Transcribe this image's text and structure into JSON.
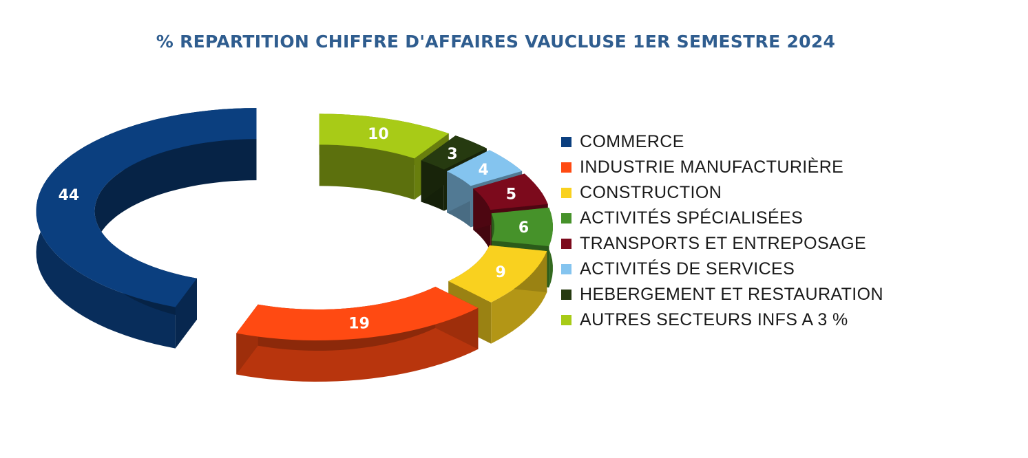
{
  "chart_data": {
    "type": "pie",
    "variant": "3d-exploded-donut",
    "title": "% REPARTITION CHIFFRE D'AFFAIRES VAUCLUSE 1ER SEMESTRE 2024",
    "categories": [
      "COMMERCE",
      "INDUSTRIE MANUFACTURIÈRE",
      "CONSTRUCTION",
      "ACTIVITÉS SPÉCIALISÉES",
      "TRANSPORTS ET ENTREPOSAGE",
      "ACTIVITÉS DE SERVICES",
      "HEBERGEMENT ET RESTAURATION",
      "AUTRES SECTEURS INFS A 3 %"
    ],
    "values": [
      44,
      19,
      9,
      6,
      5,
      4,
      3,
      10
    ],
    "data_labels": [
      "44",
      "19",
      "9",
      "6",
      "5",
      "4",
      "3",
      "10"
    ],
    "colors": [
      "#0b3f7f",
      "#ff4a12",
      "#f9d11f",
      "#46922a",
      "#7c0a1c",
      "#84c4ef",
      "#263a10",
      "#a8cb17"
    ],
    "legend_position": "right"
  }
}
